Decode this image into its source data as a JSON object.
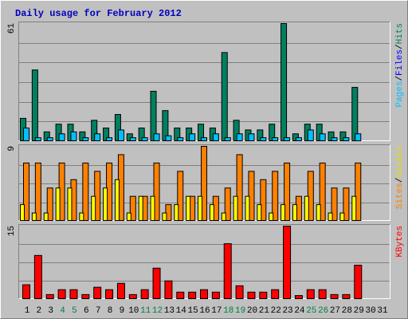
{
  "title": "Daily usage for February 2012",
  "chart_data": [
    {
      "type": "bar",
      "ylim": [
        0,
        61
      ],
      "yticks": [
        61
      ],
      "legend": [
        {
          "label": "Pages",
          "color": "#00c0ff"
        },
        {
          "label": "Files",
          "color": "#0000ff"
        },
        {
          "label": "Hits",
          "color": "#008060"
        }
      ],
      "legend_separator": "/",
      "series": [
        {
          "color": "#008060",
          "values": [
            12,
            37,
            5,
            9,
            9,
            5,
            11,
            7,
            14,
            4,
            7,
            26,
            16,
            7,
            7,
            9,
            7,
            46,
            11,
            6,
            6,
            9,
            61,
            4,
            9,
            9,
            5,
            5,
            28,
            null,
            null
          ]
        },
        {
          "color": "#00c0ff",
          "values": [
            7,
            2,
            2,
            4,
            5,
            2,
            4,
            2,
            6,
            2,
            2,
            4,
            3,
            2,
            4,
            2,
            4,
            2,
            4,
            4,
            2,
            2,
            2,
            2,
            6,
            4,
            2,
            2,
            4,
            null,
            null
          ]
        }
      ]
    },
    {
      "type": "bar",
      "ylim": [
        0,
        9
      ],
      "yticks": [
        9
      ],
      "legend": [
        {
          "label": "Sites",
          "color": "#ff8000"
        },
        {
          "label": "Visits",
          "color": "#e0e000"
        }
      ],
      "legend_separator": "/",
      "series": [
        {
          "color": "#ff8000",
          "values": [
            7,
            7,
            4,
            7,
            5,
            7,
            6,
            7,
            8,
            3,
            3,
            7,
            2,
            6,
            3,
            9,
            3,
            4,
            8,
            6,
            5,
            6,
            7,
            3,
            6,
            7,
            4,
            4,
            7,
            null,
            null
          ]
        },
        {
          "color": "#ffff00",
          "values": [
            2,
            1,
            1,
            4,
            4,
            1,
            3,
            4,
            5,
            1,
            3,
            3,
            1,
            2,
            3,
            3,
            2,
            1,
            3,
            3,
            2,
            1,
            2,
            2,
            3,
            2,
            1,
            1,
            3,
            null,
            null
          ]
        }
      ]
    },
    {
      "type": "bar",
      "ylim": [
        0,
        15
      ],
      "yticks": [
        15
      ],
      "legend": [
        {
          "label": "KBytes",
          "color": "#ff0000"
        }
      ],
      "series": [
        {
          "color": "#ff0000",
          "values": [
            3,
            9,
            1,
            2,
            2,
            1,
            2.5,
            2,
            3.3,
            1,
            2,
            6.4,
            3.8,
            1.5,
            1.5,
            2,
            1.5,
            11.4,
            2.8,
            1.5,
            1.5,
            2,
            15,
            0.8,
            2,
            2,
            1,
            1,
            7,
            null,
            null
          ]
        }
      ],
      "categories": [
        "1",
        "2",
        "3",
        "4",
        "5",
        "6",
        "7",
        "8",
        "9",
        "10",
        "11",
        "12",
        "13",
        "14",
        "15",
        "16",
        "17",
        "18",
        "19",
        "20",
        "21",
        "22",
        "23",
        "24",
        "25",
        "26",
        "27",
        "28",
        "29",
        "30",
        "31"
      ],
      "weekend_categories": [
        "4",
        "5",
        "11",
        "12",
        "18",
        "19",
        "25",
        "26"
      ],
      "weekend_color": "#008040"
    }
  ]
}
